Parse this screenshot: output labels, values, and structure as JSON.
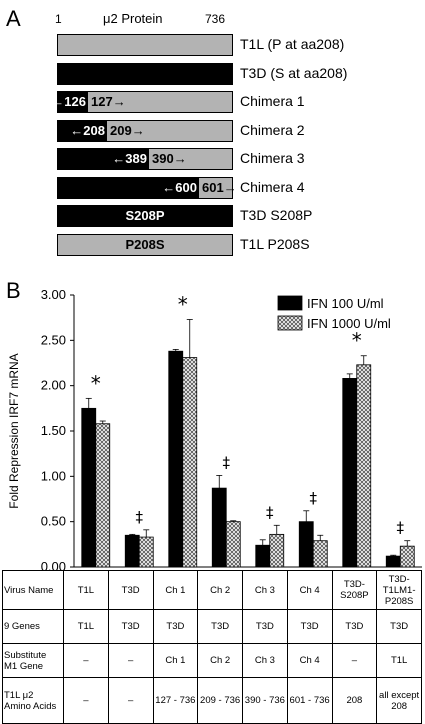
{
  "panel_a": {
    "letter": "A",
    "ruler_start": "1",
    "ruler_title": "μ2 Protein",
    "ruler_end": "736",
    "colors": {
      "t3d": "#000000",
      "t1l": "#b3b3b3"
    },
    "constructs": [
      {
        "name": "T1L (P at aa208)",
        "split": null,
        "left": "t1l",
        "left_label": "",
        "right_label": "",
        "center_label": ""
      },
      {
        "name": "T3D (S at aa208)",
        "split": null,
        "left": "t3d",
        "left_label": "",
        "right_label": "",
        "center_label": ""
      },
      {
        "name": "Chimera 1",
        "split": 126,
        "left": "t3d",
        "left_label": "←126",
        "right_label": "127→",
        "center_label": ""
      },
      {
        "name": "Chimera 2",
        "split": 208,
        "left": "t3d",
        "left_label": "←208",
        "right_label": "209→",
        "center_label": ""
      },
      {
        "name": "Chimera 3",
        "split": 389,
        "left": "t3d",
        "left_label": "←389",
        "right_label": "390→",
        "center_label": ""
      },
      {
        "name": "Chimera 4",
        "split": 600,
        "left": "t3d",
        "left_label": "←600",
        "right_label": "601→",
        "center_label": ""
      },
      {
        "name": "T3D S208P",
        "split": null,
        "left": "t3d",
        "left_label": "",
        "right_label": "",
        "center_label": "S208P"
      },
      {
        "name": "T1L P208S",
        "split": null,
        "left": "t1l",
        "left_label": "",
        "right_label": "",
        "center_label": "P208S"
      }
    ]
  },
  "panel_b": {
    "letter": "B"
  },
  "chart_data": {
    "type": "bar",
    "ylabel": "Fold Repression IRF7 mRNA",
    "ylim": [
      0,
      3.0
    ],
    "yticks": [
      "0.00",
      "0.50",
      "1.00",
      "1.50",
      "2.00",
      "2.50",
      "3.00"
    ],
    "categories": [
      "T1L",
      "T3D",
      "Ch 1",
      "Ch 2",
      "Ch 3",
      "Ch 4",
      "T3D-S208P",
      "T3D-T1LM1-P208S"
    ],
    "series": [
      {
        "name": "IFN 100 U/ml",
        "color": "#000000",
        "pattern": "solid",
        "values": [
          1.75,
          0.35,
          2.38,
          0.87,
          0.24,
          0.5,
          2.08,
          0.12
        ],
        "errors": [
          0.11,
          0.01,
          0.02,
          0.14,
          0.06,
          0.12,
          0.05,
          0.01
        ]
      },
      {
        "name": "IFN 1000 U/ml",
        "color": "#ffffff",
        "pattern": "crosshatch",
        "values": [
          1.58,
          0.33,
          2.31,
          0.5,
          0.36,
          0.29,
          2.23,
          0.23
        ],
        "errors": [
          0.03,
          0.08,
          0.42,
          0.01,
          0.1,
          0.06,
          0.1,
          0.06
        ]
      }
    ],
    "annotations": [
      "*",
      "‡",
      "*",
      "‡",
      "‡",
      "‡",
      "*",
      "‡"
    ],
    "legend_position": "top-right",
    "grid": false
  },
  "table": {
    "rows": [
      {
        "header": "Virus Name",
        "cells": [
          "T1L",
          "T3D",
          "Ch 1",
          "Ch 2",
          "Ch 3",
          "Ch 4",
          "T3D-S208P",
          "T3D-T1LM1-P208S"
        ]
      },
      {
        "header": "9 Genes",
        "cells": [
          "T1L",
          "T3D",
          "T3D",
          "T3D",
          "T3D",
          "T3D",
          "T3D",
          "T3D"
        ]
      },
      {
        "header": "Substitute M1 Gene",
        "cells": [
          "–",
          "–",
          "Ch 1",
          "Ch 2",
          "Ch 3",
          "Ch 4",
          "–",
          "T1L"
        ]
      },
      {
        "header": "T1L μ2 Amino Acids",
        "cells": [
          "–",
          "–",
          "127 - 736",
          "209 - 736",
          "390 - 736",
          "601 - 736",
          "208",
          "all except 208"
        ]
      }
    ]
  }
}
